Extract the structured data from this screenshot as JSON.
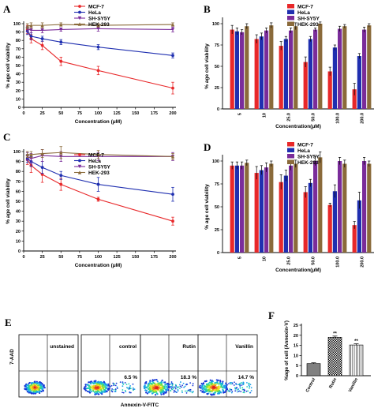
{
  "panel_labels": {
    "a": "A",
    "b": "B",
    "c": "C",
    "d": "D",
    "e": "E",
    "f": "F"
  },
  "colors": {
    "mcf7": "#e8282a",
    "hela": "#1f2fb0",
    "shsy5y": "#7a2c9a",
    "hek293": "#8a6a3a",
    "bar_gray": "#808080",
    "flow_bg": "#ffffff"
  },
  "chart_data": [
    {
      "id": "A",
      "type": "line",
      "xlabel": "Concentration (μM)",
      "ylabel": "% age cell viability",
      "x_ticks": [
        "0",
        "25",
        "50",
        "75",
        "100",
        "125",
        "150",
        "175",
        "200"
      ],
      "y_ticks": [
        "0",
        "10",
        "20",
        "30",
        "40",
        "50",
        "60",
        "70",
        "80",
        "90",
        "100"
      ],
      "xlim": [
        0,
        200
      ],
      "ylim": [
        0,
        100
      ],
      "x": [
        5,
        10,
        25,
        50,
        100,
        200
      ],
      "series": [
        {
          "name": "MCF-7",
          "color": "#e8282a",
          "values": [
            93,
            82,
            74,
            55,
            44,
            23
          ],
          "errors": [
            5,
            5,
            5,
            5,
            5,
            7
          ]
        },
        {
          "name": "HeLa",
          "color": "#1f2fb0",
          "values": [
            91,
            85,
            82,
            78,
            72,
            62
          ],
          "errors": [
            4,
            4,
            3,
            3,
            3,
            3
          ]
        },
        {
          "name": "SH-SY5Y",
          "color": "#7a2c9a",
          "values": [
            94,
            92,
            92,
            93,
            94,
            93
          ],
          "errors": [
            3,
            3,
            3,
            2,
            3,
            3
          ]
        },
        {
          "name": "HEK-293",
          "color": "#8a6a3a",
          "values": [
            97,
            98,
            98,
            99,
            98,
            99
          ],
          "errors": [
            3,
            3,
            3,
            2,
            2,
            2
          ]
        }
      ]
    },
    {
      "id": "B",
      "type": "bar",
      "xlabel": "Concentration(μM)",
      "ylabel": "% age cell viability",
      "categories": [
        "5",
        "10",
        "25.0",
        "50.0",
        "100.0",
        "200.0"
      ],
      "y_ticks": [
        "0",
        "25",
        "50",
        "75",
        "100"
      ],
      "ylim": [
        0,
        100
      ],
      "series": [
        {
          "name": "MCF-7",
          "color": "#e8282a",
          "values": [
            93,
            82,
            74,
            55,
            44,
            23
          ],
          "errors": [
            5,
            5,
            5,
            6,
            5,
            7
          ]
        },
        {
          "name": "HeLa",
          "color": "#1f2fb0",
          "values": [
            91,
            85,
            82,
            82,
            72,
            62
          ],
          "errors": [
            4,
            4,
            3,
            3,
            3,
            3
          ]
        },
        {
          "name": "SH-SY5Y",
          "color": "#7a2c9a",
          "values": [
            90,
            92,
            92,
            93,
            94,
            93
          ],
          "errors": [
            3,
            3,
            3,
            2,
            3,
            3
          ]
        },
        {
          "name": "HEK-293",
          "color": "#8a6a3a",
          "values": [
            97,
            98,
            97,
            100,
            97,
            98
          ],
          "errors": [
            3,
            3,
            4,
            2,
            2,
            2
          ]
        }
      ]
    },
    {
      "id": "C",
      "type": "line",
      "xlabel": "Concentration (μM)",
      "ylabel": "% age cell viability",
      "x_ticks": [
        "0",
        "25",
        "50",
        "75",
        "100",
        "125",
        "150",
        "175",
        "200"
      ],
      "y_ticks": [
        "0",
        "10",
        "20",
        "30",
        "40",
        "50",
        "60",
        "70",
        "80",
        "90",
        "100"
      ],
      "xlim": [
        0,
        200
      ],
      "ylim": [
        0,
        100
      ],
      "x": [
        5,
        10,
        25,
        50,
        100,
        200
      ],
      "series": [
        {
          "name": "MCF-7",
          "color": "#e8282a",
          "values": [
            92,
            86,
            77,
            67,
            52,
            30
          ],
          "errors": [
            5,
            7,
            8,
            6,
            2,
            4
          ]
        },
        {
          "name": "HeLa",
          "color": "#1f2fb0",
          "values": [
            93,
            90,
            84,
            76,
            67,
            57
          ],
          "errors": [
            4,
            5,
            6,
            4,
            7,
            7
          ]
        },
        {
          "name": "SH-SY5Y",
          "color": "#7a2c9a",
          "values": [
            95,
            93,
            96,
            95,
            95,
            95
          ],
          "errors": [
            4,
            5,
            6,
            5,
            4,
            4
          ]
        },
        {
          "name": "HEK-293",
          "color": "#8a6a3a",
          "values": [
            97,
            97,
            98,
            99,
            97,
            95
          ],
          "errors": [
            3,
            3,
            4,
            6,
            4,
            3
          ]
        }
      ]
    },
    {
      "id": "D",
      "type": "bar",
      "xlabel": "Concentration(μM)",
      "ylabel": "% age cell viability",
      "categories": [
        "5",
        "10",
        "25.0",
        "50.0",
        "100.0",
        "200.0"
      ],
      "y_ticks": [
        "0",
        "25",
        "50",
        "75",
        "100"
      ],
      "ylim": [
        0,
        100
      ],
      "series": [
        {
          "name": "MCF-7",
          "color": "#e8282a",
          "values": [
            95,
            87,
            77,
            66,
            52,
            30
          ],
          "errors": [
            4,
            7,
            8,
            6,
            2,
            4
          ]
        },
        {
          "name": "HeLa",
          "color": "#1f2fb0",
          "values": [
            95,
            90,
            84,
            76,
            67,
            57
          ],
          "errors": [
            4,
            5,
            6,
            4,
            7,
            9
          ]
        },
        {
          "name": "SH-SY5Y",
          "color": "#7a2c9a",
          "values": [
            95,
            93,
            95,
            100,
            100,
            100
          ],
          "errors": [
            4,
            5,
            5,
            5,
            4,
            4
          ]
        },
        {
          "name": "HEK-293",
          "color": "#8a6a3a",
          "values": [
            98,
            97,
            97,
            104,
            97,
            97
          ],
          "errors": [
            3,
            3,
            4,
            6,
            4,
            3
          ]
        }
      ]
    },
    {
      "id": "F",
      "type": "bar",
      "ylabel": "%age of cell (Annexin-V)",
      "categories": [
        "Control",
        "Rutin",
        "Vanillin"
      ],
      "values": [
        6,
        19,
        15.2
      ],
      "errors": [
        0.4,
        0.6,
        0.6
      ],
      "significance": [
        "",
        "**",
        "**"
      ],
      "y_ticks": [
        "0",
        "5",
        "10",
        "15",
        "20",
        "25"
      ],
      "ylim": [
        0,
        25
      ]
    }
  ],
  "flow": {
    "ylabel": "7-AAD",
    "xlabel": "Annexin-V-FITC",
    "panels": [
      {
        "label": "unstained",
        "percent": ""
      },
      {
        "label": "control",
        "percent": "6.5 %"
      },
      {
        "label": "Rutin",
        "percent": "18.3 %"
      },
      {
        "label": "Vanillin",
        "percent": "14.7 %"
      }
    ]
  }
}
